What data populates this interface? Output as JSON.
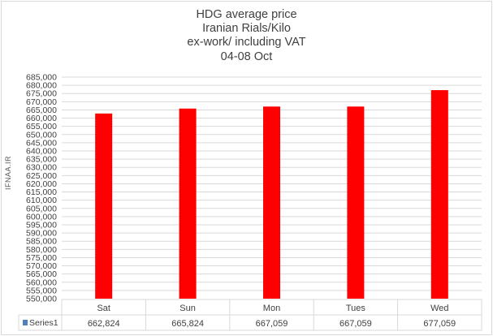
{
  "chart_data": {
    "type": "bar",
    "title": [
      "HDG average price",
      "Iranian Rials/Kilo",
      "ex-work/ including VAT",
      "04-08 Oct"
    ],
    "categories": [
      "Sat",
      "Sun",
      "Mon",
      "Tues",
      "Wed"
    ],
    "series": [
      {
        "name": "Series1",
        "values": [
          662824,
          665824,
          667059,
          667059,
          677059
        ],
        "color": "#ff0000"
      }
    ],
    "table_values": [
      "662,824",
      "665,824",
      "667,059",
      "667,059",
      "677,059"
    ],
    "ylim": [
      550000,
      685000
    ],
    "ytick_step": 5000,
    "grid": true,
    "legend": "data-table",
    "legend_key_color": "#4f81bd",
    "watermark": "IFNAA.IR"
  }
}
